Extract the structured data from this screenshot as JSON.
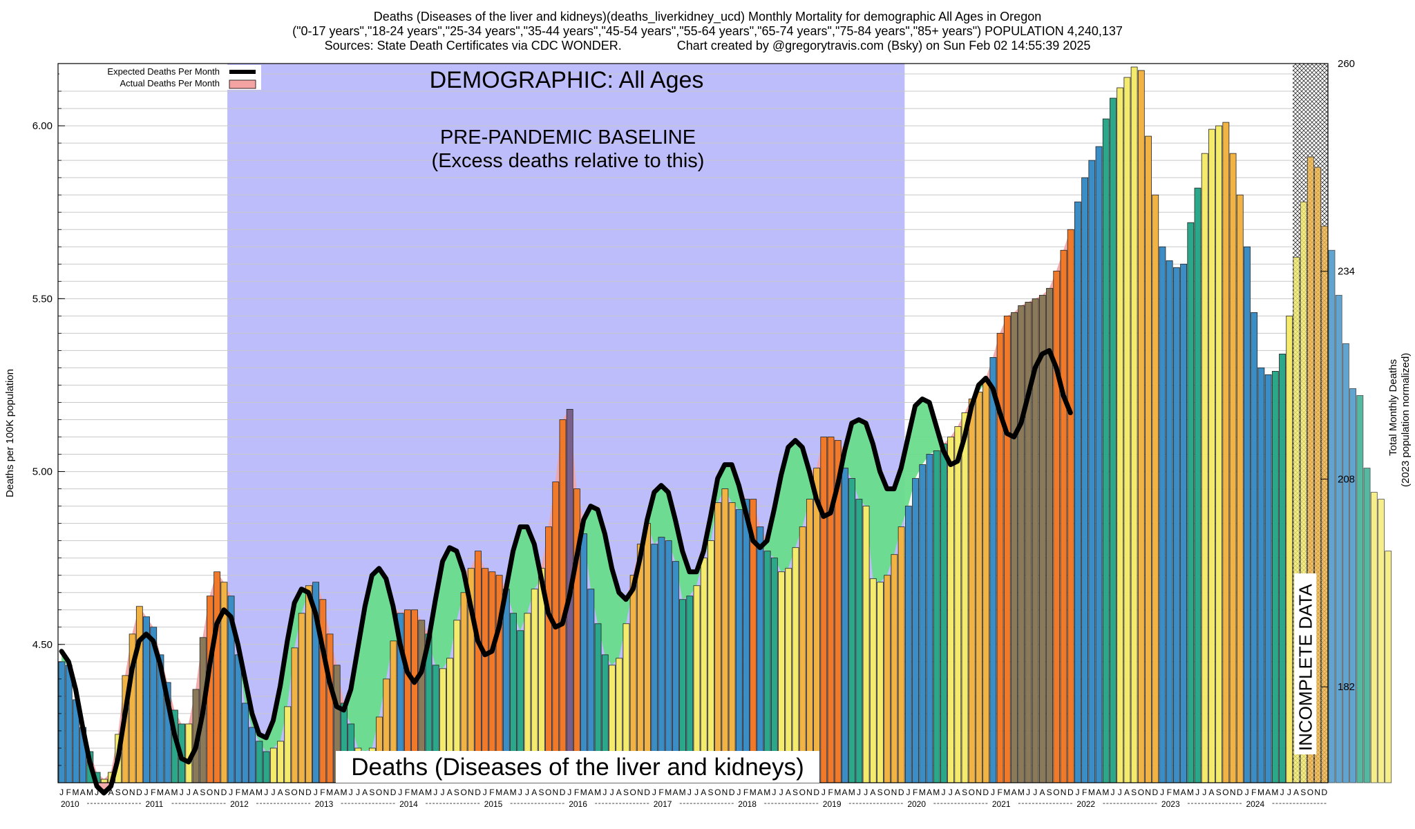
{
  "header": {
    "line1": "Deaths (Diseases of the liver and kidneys)(deaths_liverkidney_ucd) Monthly Mortality for demographic All Ages in Oregon",
    "line2": "(\"0-17 years\",\"18-24 years\",\"25-34 years\",\"35-44 years\",\"45-54 years\",\"55-64 years\",\"65-74 years\",\"75-84 years\",\"85+ years\") POPULATION 4,240,137",
    "line3": "Sources: State Death Certificates via CDC WONDER.                Chart created by @gregorytravis.com (Bsky) on Sun Feb 02 14:55:39 2025"
  },
  "legend": {
    "expected_label": "Expected Deaths Per Month",
    "actual_label": "Actual Deaths Per Month"
  },
  "annotations": {
    "demographic": "DEMOGRAPHIC: All Ages",
    "baseline_line1": "PRE-PANDEMIC BASELINE",
    "baseline_line2": "(Excess deaths relative to this)",
    "bottom_title": "Deaths (Diseases of the liver and kidneys)",
    "incomplete": "INCOMPLETE DATA"
  },
  "axes": {
    "left_label": "Deaths per 100K population",
    "right_label_line1": "Total Monthly Deaths",
    "right_label_line2": "(2023 population normalized)",
    "left_ticks": [
      "4.50",
      "5.00",
      "5.50",
      "6.00"
    ],
    "right_ticks": [
      "182",
      "208",
      "234",
      "260"
    ],
    "month_letters": [
      "J",
      "F",
      "M",
      "A",
      "M",
      "J",
      "J",
      "A",
      "S",
      "O",
      "N",
      "D"
    ],
    "years": [
      "2010",
      "2011",
      "2012",
      "2013",
      "2014",
      "2015",
      "2016",
      "2017",
      "2018",
      "2019",
      "2020",
      "2021",
      "2022",
      "2023",
      "2024"
    ]
  },
  "colors": {
    "baseline_band": "#bdbdfc",
    "expected_line": "#000000",
    "actual_fill": "#f4a3a3",
    "excess_green": "#69dc8c",
    "bar_winter": "#3b8ec5",
    "bar_spring": "#2aa889",
    "bar_summer": "#f4ea6c",
    "bar_fall": "#f0b344",
    "bar_excess": "#f07a2a"
  },
  "chart_data": {
    "type": "bar",
    "start": "2010-01",
    "ylim": [
      4.1,
      6.18
    ],
    "right_ylim": [
      170,
      260
    ],
    "baseline_span": [
      "2012-01",
      "2019-12"
    ],
    "incomplete_span": [
      "2024-08",
      "2024-12"
    ],
    "series": [
      {
        "name": "Actual Deaths Per Month",
        "values": [
          4.45,
          4.44,
          4.34,
          4.26,
          4.19,
          4.13,
          4.11,
          4.13,
          4.24,
          4.41,
          4.53,
          4.61,
          4.58,
          4.55,
          4.47,
          4.39,
          4.31,
          4.27,
          4.27,
          4.37,
          4.52,
          4.64,
          4.71,
          4.68,
          4.64,
          4.47,
          4.33,
          4.26,
          4.22,
          4.19,
          4.2,
          4.22,
          4.32,
          4.49,
          4.59,
          4.67,
          4.68,
          4.63,
          4.53,
          4.44,
          4.33,
          4.27,
          4.2,
          4.19,
          4.2,
          4.29,
          4.4,
          4.51,
          4.59,
          4.6,
          4.6,
          4.57,
          4.53,
          4.44,
          4.43,
          4.46,
          4.57,
          4.65,
          4.72,
          4.77,
          4.72,
          4.71,
          4.7,
          4.66,
          4.59,
          4.54,
          4.59,
          4.66,
          4.72,
          4.84,
          4.97,
          5.15,
          5.18,
          4.95,
          4.82,
          4.66,
          4.56,
          4.47,
          4.44,
          4.46,
          4.56,
          4.7,
          4.79,
          4.85,
          4.79,
          4.81,
          4.8,
          4.74,
          4.63,
          4.64,
          4.67,
          4.75,
          4.8,
          4.91,
          4.95,
          4.91,
          4.89,
          4.92,
          4.92,
          4.84,
          4.77,
          4.75,
          4.71,
          4.72,
          4.78,
          4.84,
          4.92,
          5.01,
          5.1,
          5.1,
          5.09,
          5.01,
          4.98,
          4.92,
          4.9,
          4.69,
          4.68,
          4.7,
          4.76,
          4.84,
          4.9,
          4.98,
          5.02,
          5.05,
          5.06,
          5.08,
          5.1,
          5.13,
          5.17,
          5.21,
          5.23,
          5.26,
          5.33,
          5.4,
          5.45,
          5.46,
          5.48,
          5.49,
          5.5,
          5.51,
          5.53,
          5.58,
          5.64,
          5.7,
          5.78,
          5.85,
          5.9,
          5.94,
          6.02,
          6.08,
          6.11,
          6.14,
          6.17,
          6.16,
          5.97,
          5.8,
          5.65,
          5.61,
          5.59,
          5.6,
          5.72,
          5.82,
          5.92,
          5.99,
          6.0,
          6.01,
          5.92,
          5.8,
          5.65,
          5.46,
          5.3,
          5.28,
          5.29,
          5.34,
          5.45,
          5.62,
          5.78,
          5.91,
          5.88,
          5.71,
          5.64,
          5.51,
          5.37,
          5.24,
          5.22,
          5.01,
          4.94,
          4.92,
          4.77
        ]
      },
      {
        "name": "Expected Deaths Per Month",
        "values": [
          4.48,
          4.45,
          4.37,
          4.26,
          4.16,
          4.09,
          4.07,
          4.09,
          4.17,
          4.3,
          4.43,
          4.51,
          4.53,
          4.51,
          4.44,
          4.34,
          4.24,
          4.17,
          4.16,
          4.2,
          4.3,
          4.44,
          4.56,
          4.6,
          4.58,
          4.5,
          4.4,
          4.3,
          4.24,
          4.23,
          4.28,
          4.38,
          4.51,
          4.62,
          4.66,
          4.65,
          4.59,
          4.49,
          4.39,
          4.32,
          4.31,
          4.37,
          4.49,
          4.61,
          4.7,
          4.72,
          4.69,
          4.61,
          4.5,
          4.42,
          4.39,
          4.42,
          4.51,
          4.63,
          4.74,
          4.78,
          4.77,
          4.71,
          4.61,
          4.51,
          4.47,
          4.48,
          4.55,
          4.66,
          4.77,
          4.84,
          4.84,
          4.79,
          4.69,
          4.59,
          4.55,
          4.56,
          4.64,
          4.75,
          4.86,
          4.9,
          4.89,
          4.82,
          4.72,
          4.65,
          4.63,
          4.66,
          4.75,
          4.86,
          4.94,
          4.96,
          4.94,
          4.86,
          4.77,
          4.71,
          4.71,
          4.77,
          4.87,
          4.98,
          5.02,
          5.02,
          4.96,
          4.88,
          4.8,
          4.78,
          4.8,
          4.89,
          4.99,
          5.07,
          5.09,
          5.07,
          5.0,
          4.92,
          4.87,
          4.88,
          4.96,
          5.06,
          5.14,
          5.15,
          5.14,
          5.08,
          5.0,
          4.95,
          4.95,
          5.01,
          5.1,
          5.19,
          5.21,
          5.2,
          5.13,
          5.06,
          5.02,
          5.03,
          5.1,
          5.19,
          5.25,
          5.27,
          5.24,
          5.17,
          5.11,
          5.1,
          5.14,
          5.22,
          5.3,
          5.34,
          5.35,
          5.3,
          5.22,
          5.17
        ]
      }
    ]
  }
}
